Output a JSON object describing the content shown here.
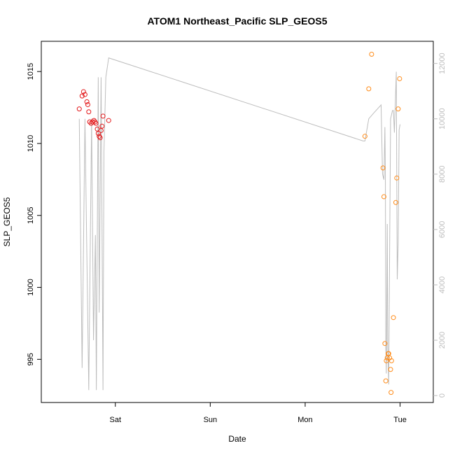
{
  "chart_data": {
    "type": "scatter",
    "title": "ATOM1 Northeast_Pacific SLP_GEOS5",
    "xlabel": "Date",
    "ylabel": "SLP_GEOS5",
    "x_axis": {
      "unit": "days",
      "range": [
        -0.78,
        3.35
      ],
      "ticks": [
        {
          "value": 0,
          "label": "Sat"
        },
        {
          "value": 1,
          "label": "Sun"
        },
        {
          "value": 2,
          "label": "Mon"
        },
        {
          "value": 3,
          "label": "Tue"
        }
      ]
    },
    "y_left": {
      "range": [
        992.0,
        1017.1
      ],
      "ticks": [
        995,
        1000,
        1005,
        1010,
        1015
      ]
    },
    "y_right": {
      "range": [
        -250,
        12800
      ],
      "ticks": [
        0,
        2000,
        4000,
        6000,
        8000,
        10000,
        12000
      ],
      "color": "#bdbdbd"
    },
    "series": [
      {
        "color": "#e31a1c",
        "axis": "left",
        "points": [
          [
            -0.38,
            1012.4
          ],
          [
            -0.35,
            1013.3
          ],
          [
            -0.335,
            1013.6
          ],
          [
            -0.32,
            1013.4
          ],
          [
            -0.3,
            1012.9
          ],
          [
            -0.29,
            1012.7
          ],
          [
            -0.28,
            1012.2
          ],
          [
            -0.27,
            1011.5
          ],
          [
            -0.255,
            1011.4
          ],
          [
            -0.24,
            1011.5
          ],
          [
            -0.225,
            1011.6
          ],
          [
            -0.215,
            1011.5
          ],
          [
            -0.205,
            1011.4
          ],
          [
            -0.19,
            1011.0
          ],
          [
            -0.18,
            1010.7
          ],
          [
            -0.17,
            1010.5
          ],
          [
            -0.16,
            1010.4
          ],
          [
            -0.15,
            1010.9
          ],
          [
            -0.14,
            1011.2
          ],
          [
            -0.13,
            1011.9
          ],
          [
            -0.07,
            1011.6
          ]
        ]
      },
      {
        "color": "#ff8c1a",
        "axis": "left",
        "points": [
          [
            2.63,
            1010.5
          ],
          [
            2.67,
            1013.8
          ],
          [
            2.7,
            1016.2
          ],
          [
            2.82,
            1008.3
          ],
          [
            2.83,
            1006.3
          ],
          [
            2.84,
            996.1
          ],
          [
            2.85,
            993.5
          ],
          [
            2.855,
            994.9
          ],
          [
            2.865,
            995.1
          ],
          [
            2.875,
            995.4
          ],
          [
            2.88,
            995.4
          ],
          [
            2.89,
            995.1
          ],
          [
            2.9,
            994.3
          ],
          [
            2.905,
            992.7
          ],
          [
            2.91,
            994.9
          ],
          [
            2.93,
            997.9
          ],
          [
            2.955,
            1005.9
          ],
          [
            2.965,
            1007.6
          ],
          [
            2.98,
            1012.4
          ],
          [
            2.995,
            1014.5
          ]
        ]
      },
      {
        "color": "#bdbdbd",
        "axis": "right",
        "line": [
          [
            -0.38,
            10000
          ],
          [
            -0.35,
            1000
          ],
          [
            -0.32,
            10000
          ],
          [
            -0.28,
            200
          ],
          [
            -0.25,
            10000
          ],
          [
            -0.23,
            2000
          ],
          [
            -0.21,
            5800
          ],
          [
            -0.2,
            200
          ],
          [
            -0.18,
            11500
          ],
          [
            -0.17,
            3000
          ],
          [
            -0.15,
            11500
          ],
          [
            -0.13,
            200
          ],
          [
            -0.12,
            8800
          ],
          [
            -0.1,
            11500
          ],
          [
            -0.07,
            12200
          ],
          [
            2.61,
            9200
          ],
          [
            2.63,
            9200
          ],
          [
            2.67,
            10000
          ],
          [
            2.72,
            10200
          ],
          [
            2.8,
            10500
          ],
          [
            2.815,
            8000
          ],
          [
            2.83,
            7800
          ],
          [
            2.84,
            9700
          ],
          [
            2.845,
            8000
          ],
          [
            2.85,
            1700
          ],
          [
            2.855,
            800
          ],
          [
            2.86,
            3200
          ],
          [
            2.865,
            6200
          ],
          [
            2.87,
            1800
          ],
          [
            2.88,
            400
          ],
          [
            2.9,
            10000
          ],
          [
            2.92,
            10300
          ],
          [
            2.93,
            10300
          ],
          [
            2.94,
            9500
          ],
          [
            2.96,
            11700
          ],
          [
            2.97,
            4200
          ],
          [
            2.98,
            5500
          ],
          [
            2.99,
            9600
          ],
          [
            3.0,
            9800
          ]
        ]
      }
    ]
  }
}
